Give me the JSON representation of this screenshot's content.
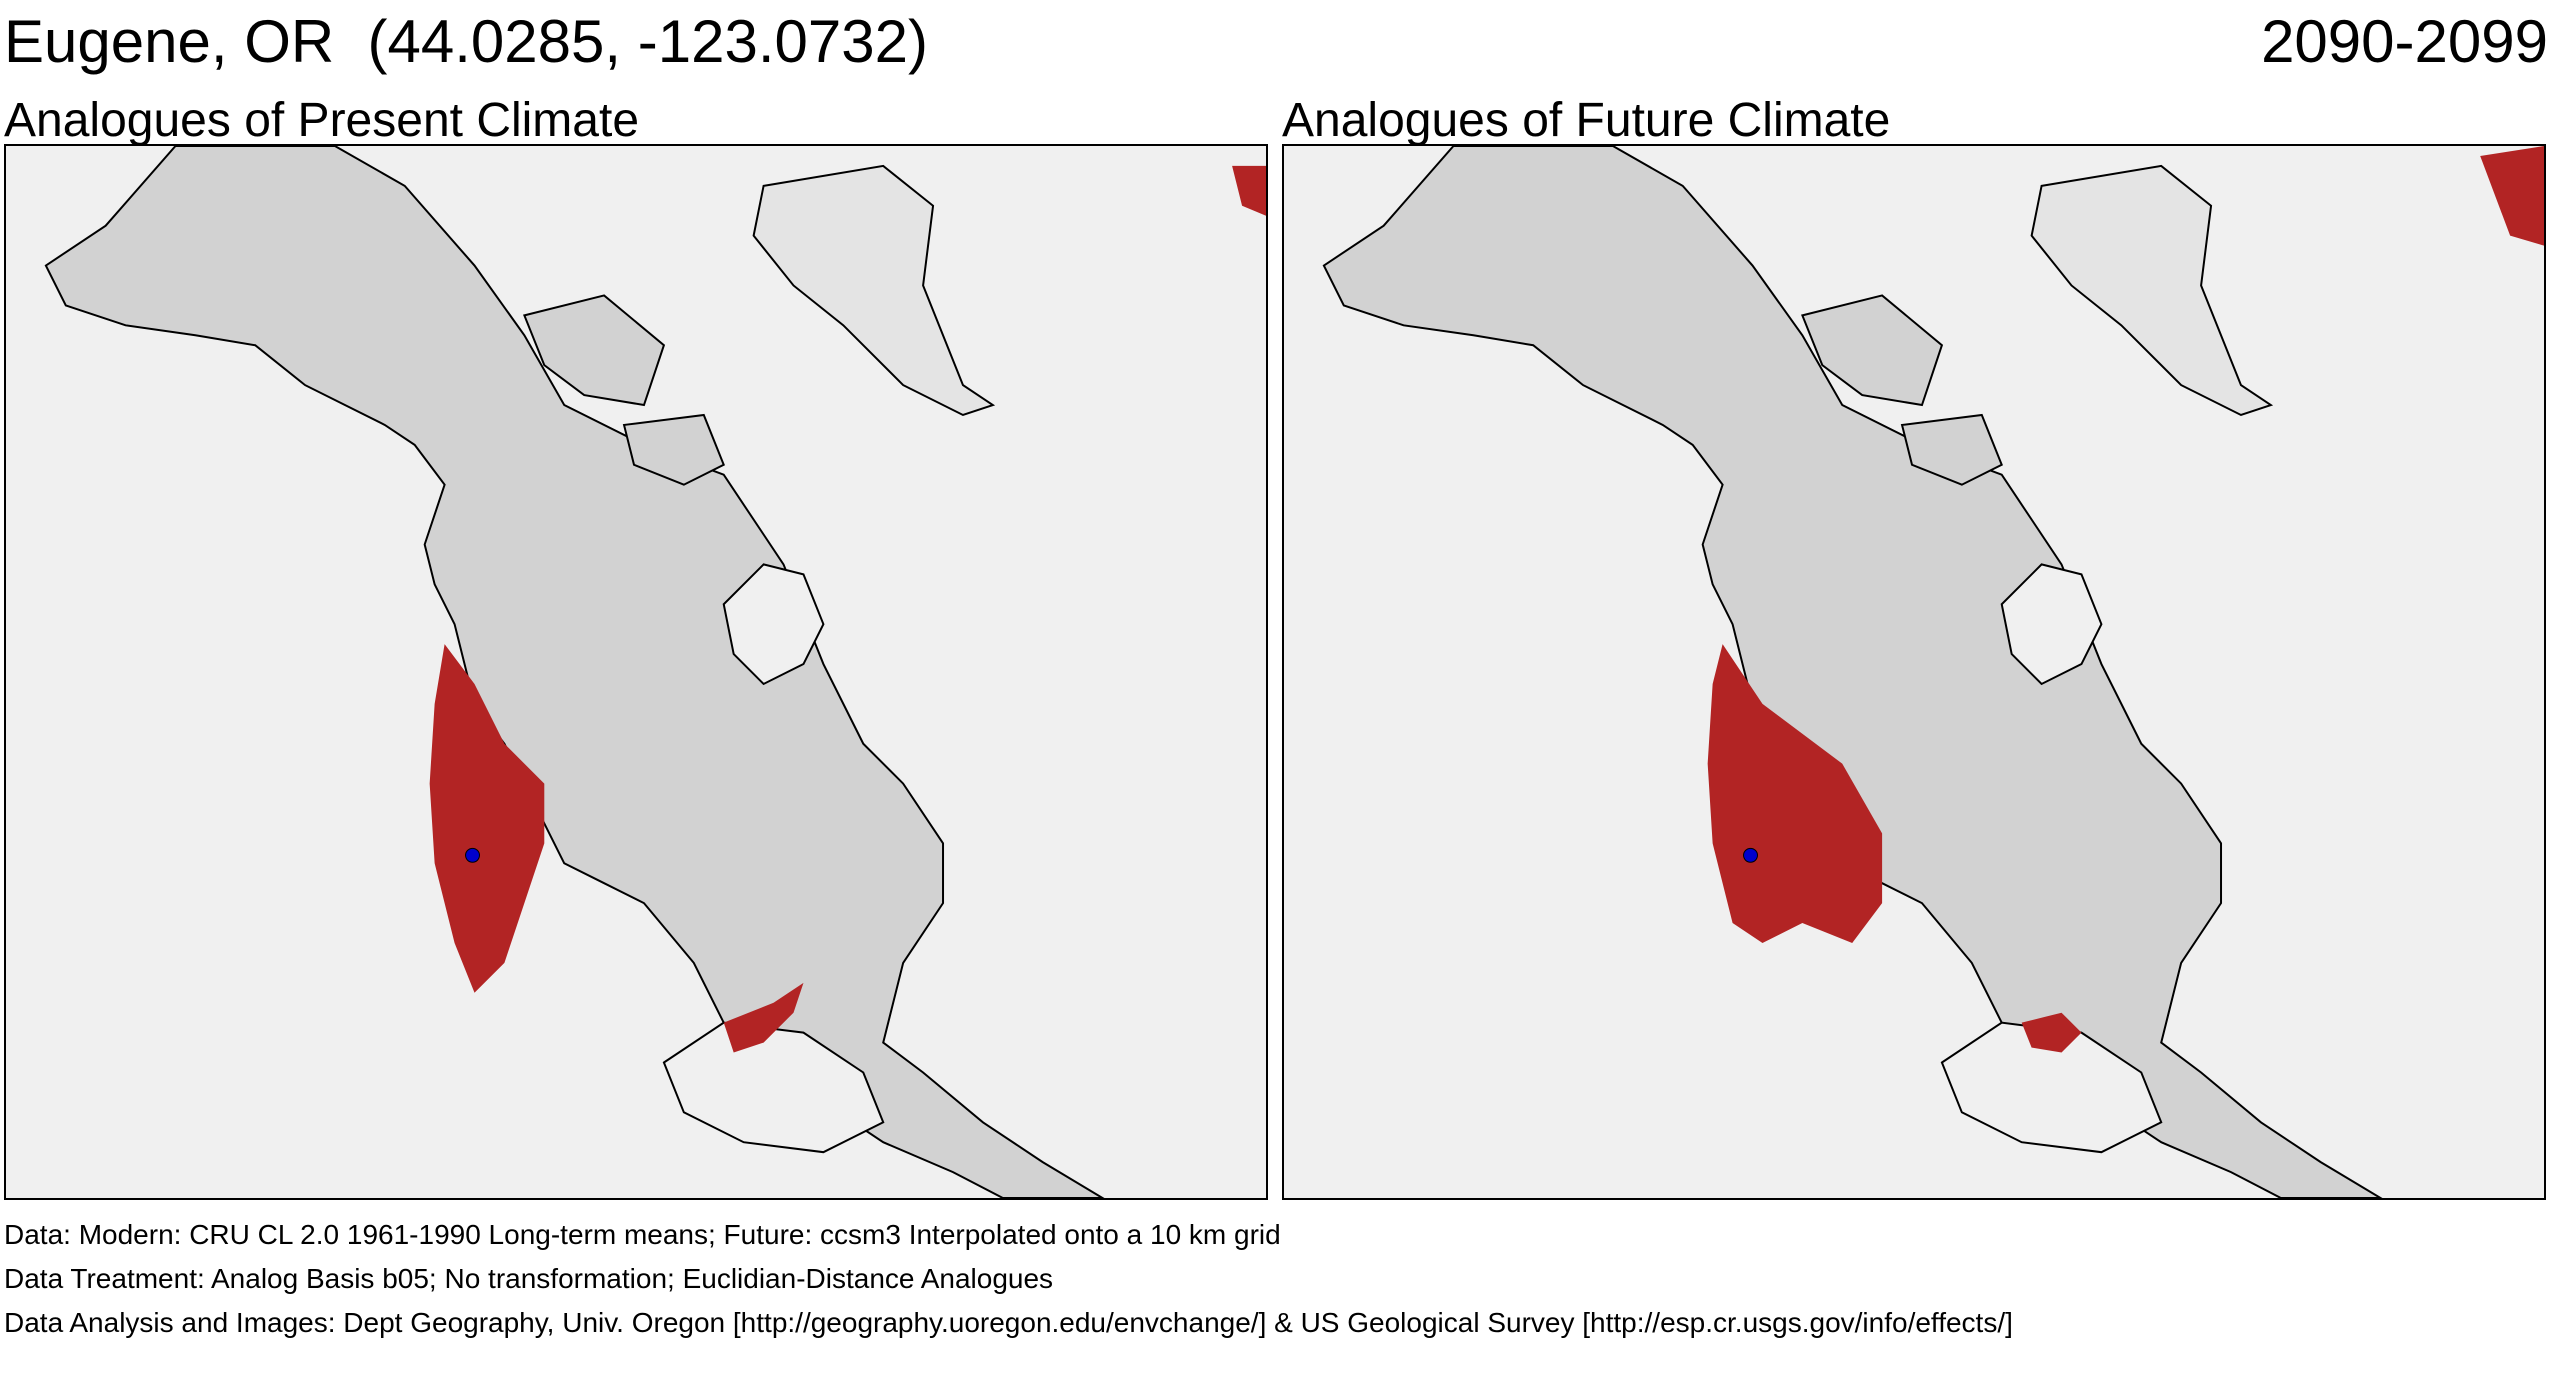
{
  "header": {
    "location": "Eugene, OR  (44.0285, -123.0732)",
    "period": "2090-2099"
  },
  "panels": [
    {
      "title": "Analogues of Present Climate"
    },
    {
      "title": "Analogues of Future Climate"
    }
  ],
  "footer": {
    "data_line": "Data:  Modern: CRU CL 2.0 1961-1990 Long-term means; Future: ccsm3 Interpolated onto a 10 km grid",
    "treatment_line": "Data Treatment:  Analog Basis b05; No transformation; Euclidian-Distance Analogues",
    "analysis_line": "Data Analysis and Images:  Dept Geography, Univ. Oregon [http://geography.uoregon.edu/envchange/] & US Geological Survey [http://esp.cr.usgs.gov/info/effects/]"
  },
  "colors": {
    "analogue_fill": "#b22424",
    "land_fill": "#d2d2d2",
    "water_fill": "#f0f0f0",
    "site_marker": "#0000cc",
    "coastline": "#000000"
  }
}
